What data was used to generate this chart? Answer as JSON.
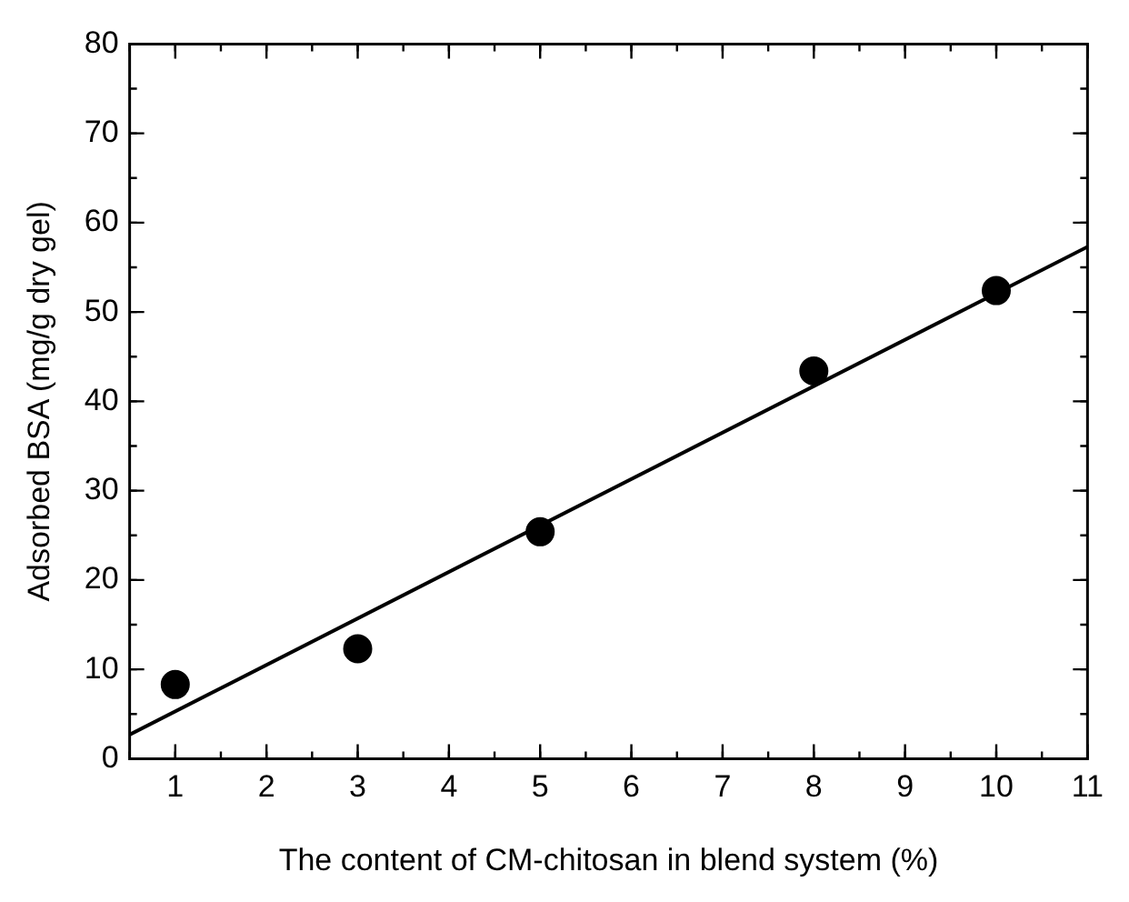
{
  "chart_data": {
    "type": "scatter",
    "xlabel": "The content of CM-chitosan in blend system (%)",
    "ylabel": "Adsorbed BSA (mg/g dry gel)",
    "x": [
      1,
      3,
      5,
      8,
      10
    ],
    "series": [
      {
        "type": "scatter",
        "color": "#000000",
        "values": [
          8.3,
          12.3,
          25.4,
          43.4,
          52.4
        ],
        "marker": "circle"
      },
      {
        "type": "line",
        "color": "#000000",
        "x": [
          0.5,
          11
        ],
        "values": [
          2.7,
          57.3
        ],
        "marker": "none",
        "line_style": "solid"
      }
    ],
    "xlim": [
      0.5,
      11
    ],
    "xticks": [
      1,
      2,
      3,
      4,
      5,
      6,
      7,
      8,
      9,
      10,
      11
    ],
    "ylim": [
      0,
      80
    ],
    "yticks": [
      0,
      10,
      20,
      30,
      40,
      50,
      60,
      70,
      80
    ],
    "grid": false,
    "legend": false
  }
}
